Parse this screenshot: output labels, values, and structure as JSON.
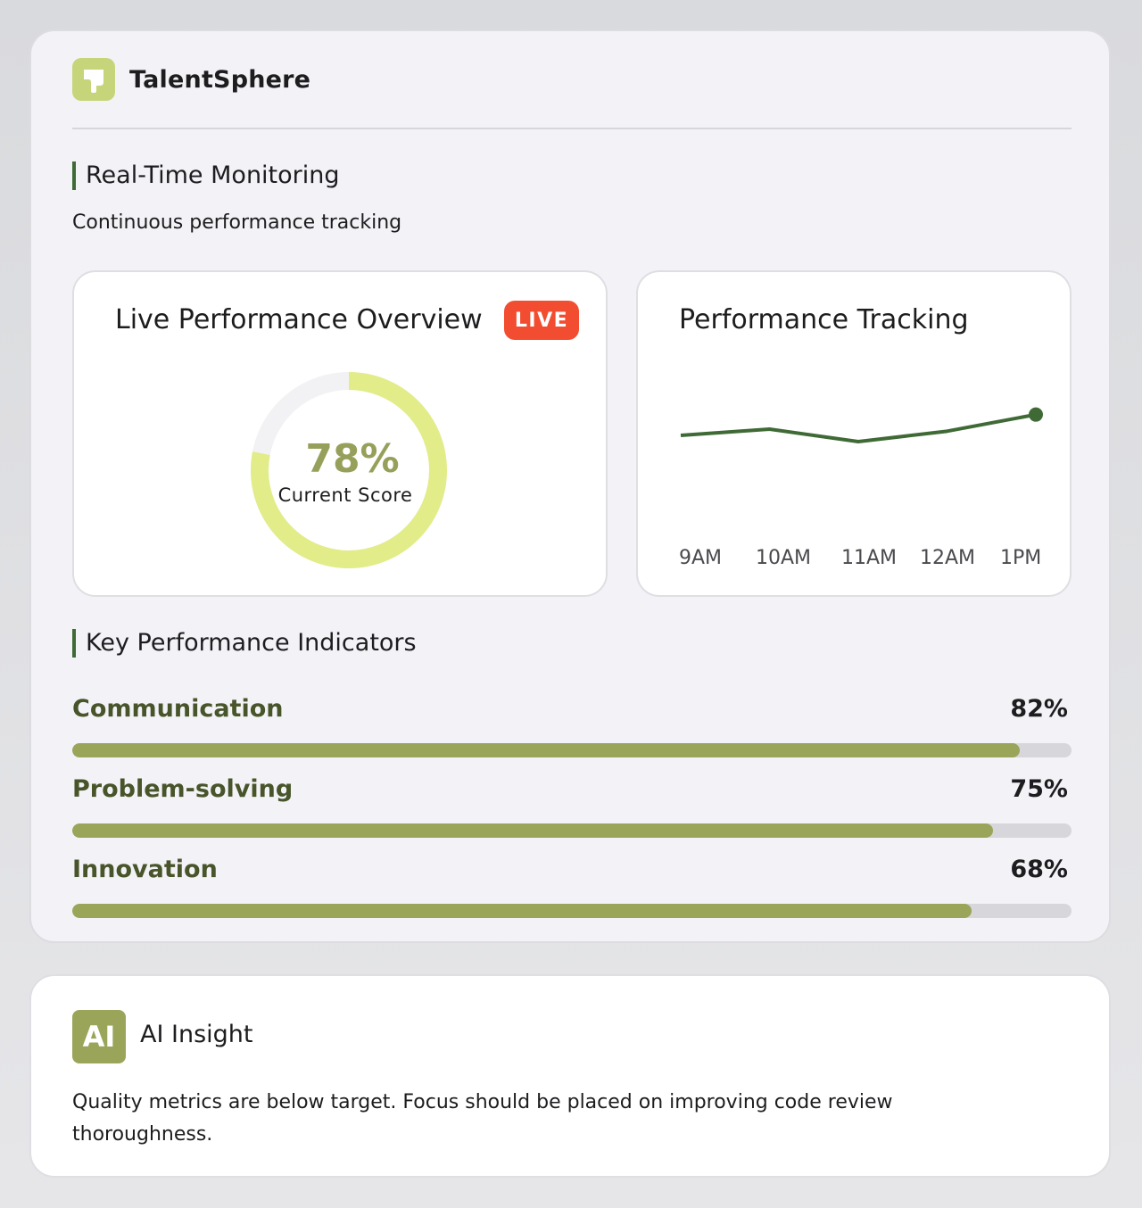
{
  "brand": {
    "name": "TalentSphere",
    "logo_icon": "talentsphere-logo-icon",
    "logo_color": "#c6d57a"
  },
  "monitoring": {
    "heading": "Real-Time Monitoring",
    "subheading": "Continuous performance tracking"
  },
  "overview": {
    "title": "Live Performance Overview",
    "live_badge": "LIVE",
    "score": 78,
    "score_text": "78%",
    "score_label": "Current Score"
  },
  "tracking": {
    "title": "Performance Tracking"
  },
  "chart_data": {
    "type": "line",
    "title": "Performance Tracking",
    "x": [
      "9AM",
      "10AM",
      "11AM",
      "12AM",
      "1PM"
    ],
    "series": [
      {
        "values": [
          73,
          76,
          70,
          75,
          83
        ]
      }
    ],
    "ylim": [
      40,
      100
    ],
    "grid": false,
    "legend": "none",
    "line_color": "#3f6a36"
  },
  "kpis": {
    "heading": "Key Performance Indicators",
    "items": [
      {
        "label": "Communication",
        "value_text": "82%",
        "fill": 0.948
      },
      {
        "label": "Problem-solving",
        "value_text": "75%",
        "fill": 0.921
      },
      {
        "label": "Innovation",
        "value_text": "68%",
        "fill": 0.9
      }
    ]
  },
  "insight": {
    "badge": "AI",
    "title": "AI Insight",
    "text": "Quality metrics are below target. Focus should be placed on improving code review thoroughness."
  },
  "colors": {
    "accent": "#9aa55a",
    "gauge_fill": "#e2ec88",
    "live": "#f24d30",
    "heading_bar": "#3f6a36"
  }
}
